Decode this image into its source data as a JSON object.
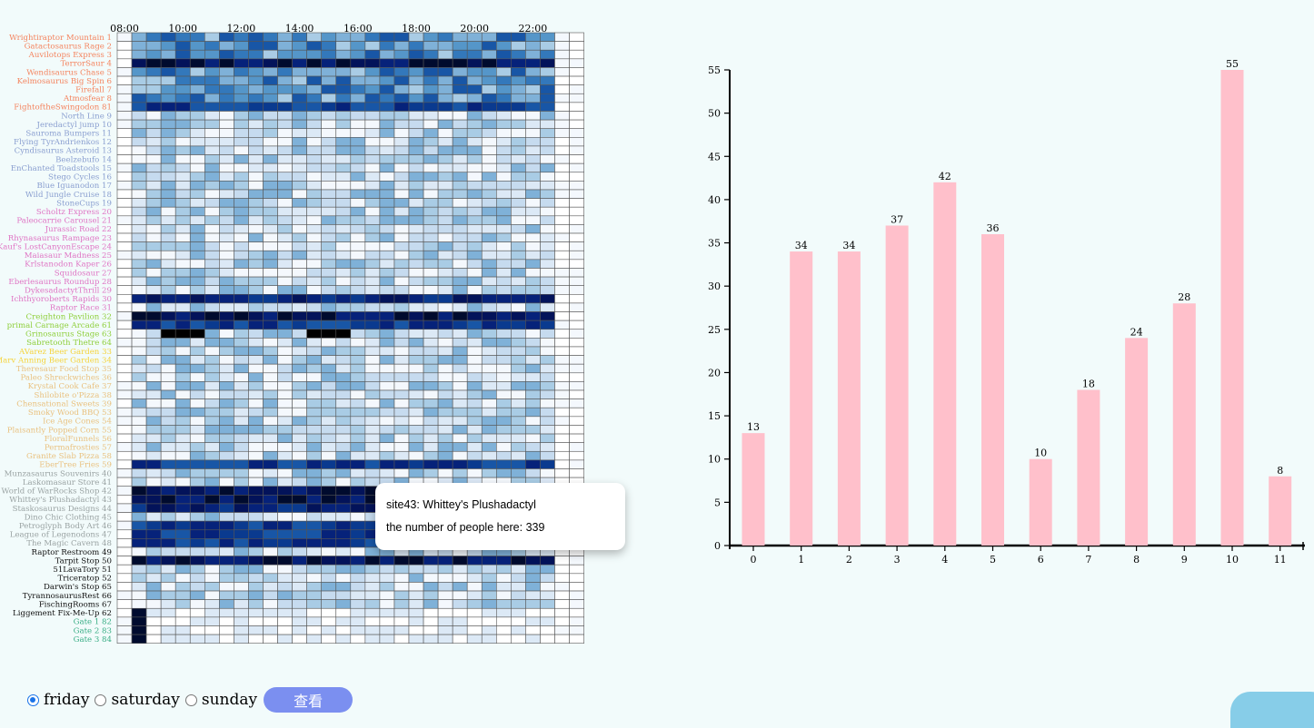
{
  "heatmap": {
    "time_labels": [
      "08:00",
      "10:00",
      "12:00",
      "14:00",
      "16:00",
      "18:00",
      "20:00",
      "22:00"
    ],
    "rows": [
      {
        "label": "Wrightiraptor Mountain 1",
        "color": "#f4845f"
      },
      {
        "label": "Gatactosaurus Rage 2",
        "color": "#f4845f"
      },
      {
        "label": "Auvilotops Express 3",
        "color": "#f4845f"
      },
      {
        "label": "TerrorSaur 4",
        "color": "#f4845f"
      },
      {
        "label": "Wendisaurus Chase 5",
        "color": "#f4845f"
      },
      {
        "label": "Kelmosaurus Big Spin 6",
        "color": "#f4845f"
      },
      {
        "label": "Firefall 7",
        "color": "#f4845f"
      },
      {
        "label": "Atmosfear 8",
        "color": "#f4845f"
      },
      {
        "label": "FightoftheSwingodon 81",
        "color": "#f4845f"
      },
      {
        "label": "North Line 9",
        "color": "#8a9fd0"
      },
      {
        "label": "Jeredactyl jump 10",
        "color": "#8a9fd0"
      },
      {
        "label": "Sauroma Bumpers 11",
        "color": "#8a9fd0"
      },
      {
        "label": "Flying TyrAndrienkos 12",
        "color": "#8a9fd0"
      },
      {
        "label": "Cyndisaurus Asteroid 13",
        "color": "#8a9fd0"
      },
      {
        "label": "Beelzebufo 14",
        "color": "#8a9fd0"
      },
      {
        "label": "EnChanted Toadstools 15",
        "color": "#8a9fd0"
      },
      {
        "label": "Stego Cycles 16",
        "color": "#8a9fd0"
      },
      {
        "label": "Blue Iguanodon 17",
        "color": "#8a9fd0"
      },
      {
        "label": "Wild Jungle Cruise 18",
        "color": "#8a9fd0"
      },
      {
        "label": "StoneCups 19",
        "color": "#8a9fd0"
      },
      {
        "label": "Scholtz Express 20",
        "color": "#df75c4"
      },
      {
        "label": "Paleocarrie Carousel 21",
        "color": "#df75c4"
      },
      {
        "label": "Jurassic Road 22",
        "color": "#df75c4"
      },
      {
        "label": "Rhynasaurus Rampage 23",
        "color": "#df75c4"
      },
      {
        "label": "Kauf's LostCanyonEscape 24",
        "color": "#df75c4"
      },
      {
        "label": "Maiasaur Madness 25",
        "color": "#df75c4"
      },
      {
        "label": "Krlstanodon Kaper 26",
        "color": "#df75c4"
      },
      {
        "label": "Squidosaur 27",
        "color": "#df75c4"
      },
      {
        "label": "Eberlesaurus Roundup 28",
        "color": "#df75c4"
      },
      {
        "label": "DykesadactytThrill 29",
        "color": "#df75c4"
      },
      {
        "label": "Ichthyoroberts Rapids 30",
        "color": "#df75c4"
      },
      {
        "label": "Raptor Race 31",
        "color": "#df75c4"
      },
      {
        "label": "Creighton Pavilion 32",
        "color": "#8fcf3c"
      },
      {
        "label": "primal Carnage Arcade 61",
        "color": "#8fcf3c"
      },
      {
        "label": "Grinosaurus Stage 63",
        "color": "#8fcf3c"
      },
      {
        "label": "Sabretooth Thetre 64",
        "color": "#8fcf3c"
      },
      {
        "label": "AVarez Beer Garden 33",
        "color": "#f5d33b"
      },
      {
        "label": "Marv Anning Beer Garden 34",
        "color": "#f5d33b"
      },
      {
        "label": "Theresaur Food Stop 35",
        "color": "#e9c17f"
      },
      {
        "label": "Paleo Shreckwiches 36",
        "color": "#e9c17f"
      },
      {
        "label": "Krystal Cook Cafe 37",
        "color": "#e9c17f"
      },
      {
        "label": "Shilobite o'Pizza 38",
        "color": "#e9c17f"
      },
      {
        "label": "Chensational Sweets 39",
        "color": "#e9c17f"
      },
      {
        "label": "Smoky Wood BBQ 53",
        "color": "#e9c17f"
      },
      {
        "label": "Ice Age Cones 54",
        "color": "#e9c17f"
      },
      {
        "label": "Plaisantly Popped Corn 55",
        "color": "#e9c17f"
      },
      {
        "label": "FloralFunnels 56",
        "color": "#e9c17f"
      },
      {
        "label": "Permafrosties 57",
        "color": "#e9c17f"
      },
      {
        "label": "Granite Slab Pizza 58",
        "color": "#e9c17f"
      },
      {
        "label": "EberTree Fries 59",
        "color": "#e9c17f"
      },
      {
        "label": "Munzasaurus Souvenirs 40",
        "color": "#9aa3a3"
      },
      {
        "label": "Laskomasaur Store 41",
        "color": "#9aa3a3"
      },
      {
        "label": "World of WarRocks Shop 42",
        "color": "#9aa3a3"
      },
      {
        "label": "Whittey's Plushadactyl 43",
        "color": "#9aa3a3"
      },
      {
        "label": "Staskosaurus Designs 44",
        "color": "#9aa3a3"
      },
      {
        "label": "Dino Chic Clothing 45",
        "color": "#9aa3a3"
      },
      {
        "label": "Petroglyph Body Art 46",
        "color": "#9aa3a3"
      },
      {
        "label": "League of Legenodons 47",
        "color": "#9aa3a3"
      },
      {
        "label": "The Magic Cavern 48",
        "color": "#9aa3a3"
      },
      {
        "label": "Raptor Restroom 49",
        "color": "#111111"
      },
      {
        "label": "Tarpit Stop 50",
        "color": "#111111"
      },
      {
        "label": "51LavaTory 51",
        "color": "#111111"
      },
      {
        "label": "Triceratop 52",
        "color": "#111111"
      },
      {
        "label": "Darwin's Stop 65",
        "color": "#111111"
      },
      {
        "label": "TyrannosaurusRest 66",
        "color": "#111111"
      },
      {
        "label": "FischingRooms 67",
        "color": "#111111"
      },
      {
        "label": "Liggement Fix-Me-Up 62",
        "color": "#111111"
      },
      {
        "label": "Gate 1 82",
        "color": "#3aae86"
      },
      {
        "label": "Gate 2 83",
        "color": "#3aae86"
      },
      {
        "label": "Gate 3 84",
        "color": "#3aae86"
      }
    ]
  },
  "tooltip": {
    "line1": "site43: Whittey's Plushadactyl",
    "line2": "the number of people here: 339"
  },
  "chart_data": {
    "type": "bar",
    "categories": [
      "0",
      "1",
      "2",
      "3",
      "4",
      "5",
      "6",
      "7",
      "8",
      "9",
      "10",
      "11"
    ],
    "values": [
      13,
      34,
      34,
      37,
      42,
      36,
      10,
      18,
      24,
      28,
      55,
      8
    ],
    "ylim": [
      0,
      55
    ],
    "yticks": [
      0,
      5,
      10,
      15,
      20,
      25,
      30,
      35,
      40,
      45,
      50,
      55
    ],
    "bar_color": "#ffc0cb"
  },
  "controls": {
    "options": [
      "friday",
      "saturday",
      "sunday"
    ],
    "selected": "friday",
    "button_label": "查看"
  }
}
